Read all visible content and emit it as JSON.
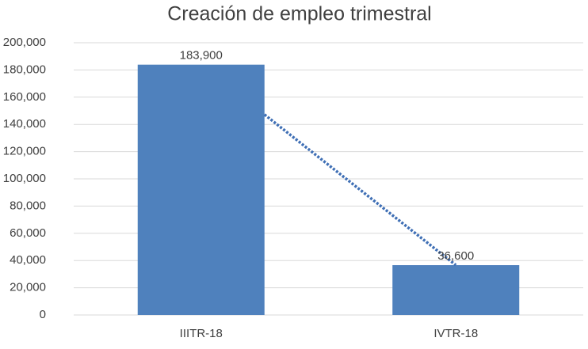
{
  "chart_data": {
    "type": "bar",
    "title": "Creación de empleo trimestral",
    "categories": [
      "IIITR-18",
      "IVTR-18"
    ],
    "values": [
      183900,
      36600
    ],
    "value_labels": [
      "183,900",
      "36,600"
    ],
    "color": "#4f81bd",
    "trendline": "linear",
    "trendline_color": "#3f6fb5",
    "ylim": [
      0,
      200000
    ],
    "yticks": [
      0,
      {
        "value": 20000,
        "label": "20,000"
      },
      {
        "value": 40000,
        "label": "40,000"
      },
      {
        "value": 60000,
        "label": "60,000"
      },
      {
        "value": 80000,
        "label": "80,000"
      },
      {
        "value": 100000,
        "label": "100,000"
      },
      {
        "value": 120000,
        "label": "120,000"
      },
      {
        "value": 140000,
        "label": "140,000"
      },
      {
        "value": 160000,
        "label": "160,000"
      },
      {
        "value": 180000,
        "label": "180,000"
      },
      {
        "value": 200000,
        "label": "200,000"
      }
    ],
    "grid": true
  }
}
